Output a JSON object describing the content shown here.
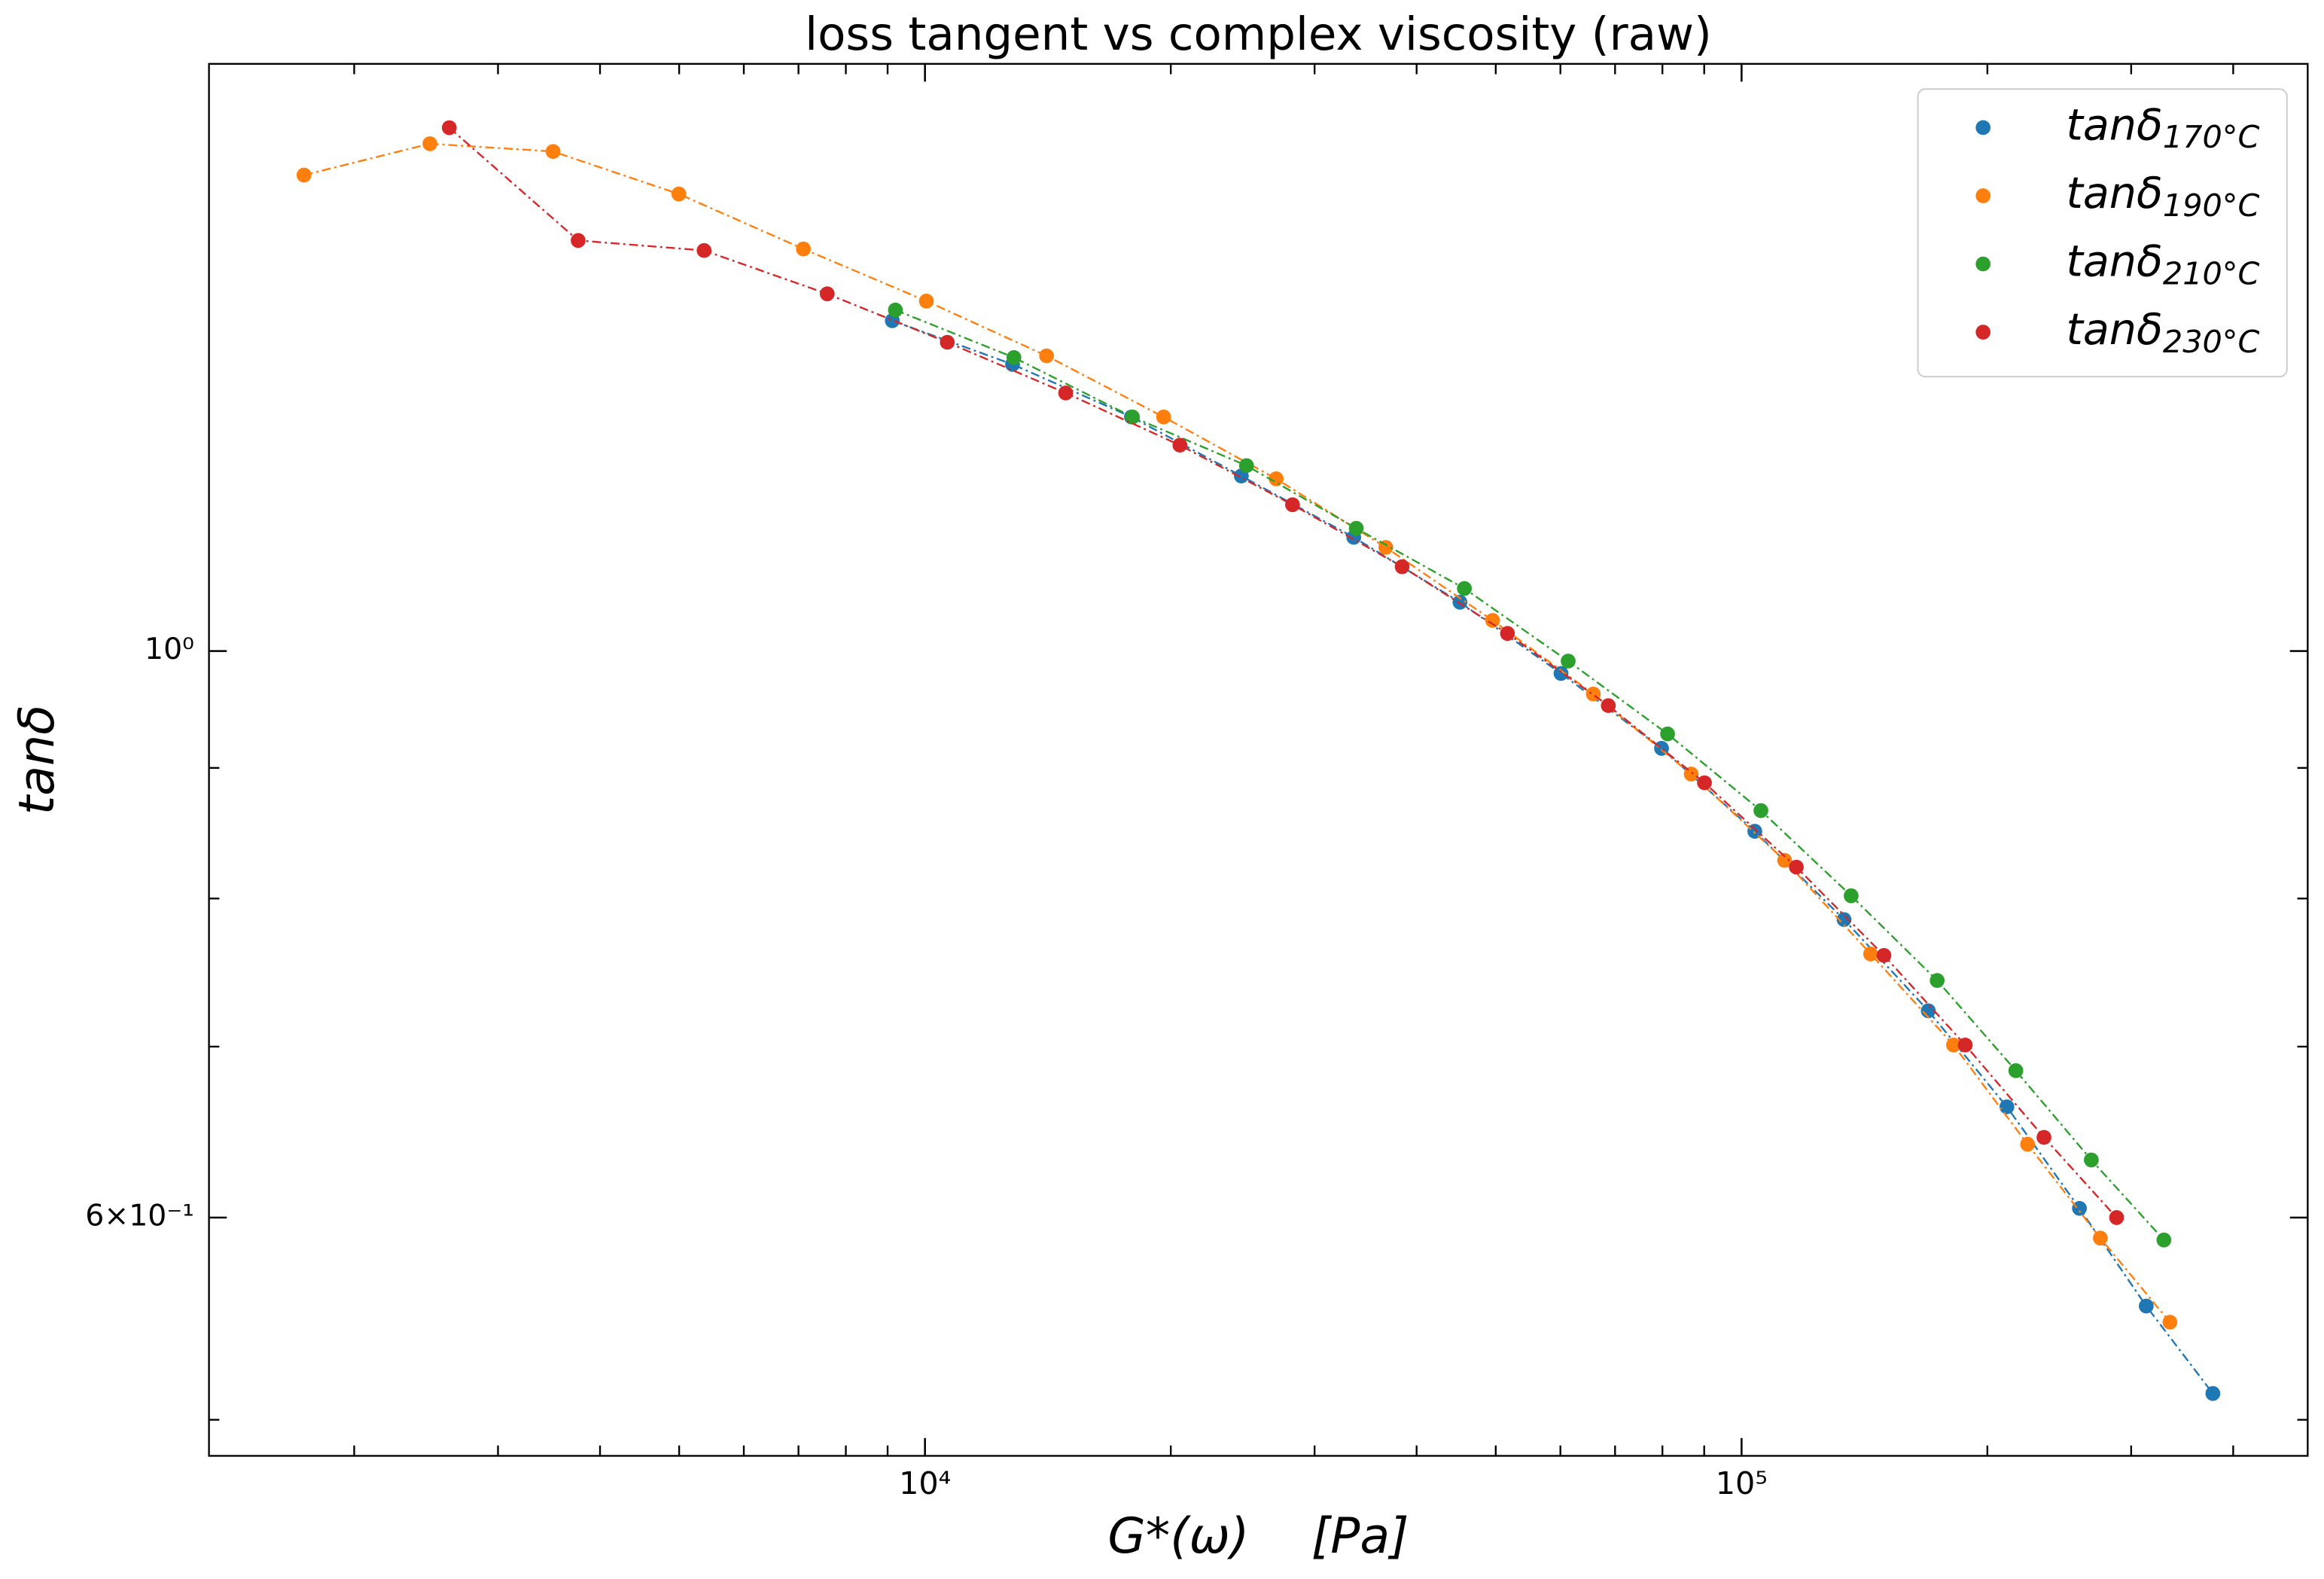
{
  "chart_data": {
    "type": "line",
    "title": "loss tangent vs complex viscosity (raw)",
    "x_label": "G*(ω)    [Pa]",
    "y_label": "tanδ",
    "xscale": "log",
    "yscale": "log",
    "xlim": [
      1328,
      493500
    ],
    "ylim": [
      0.484,
      1.698
    ],
    "xticks": [
      {
        "value": 10000,
        "label": "10⁴"
      },
      {
        "value": 100000,
        "label": "10⁵"
      }
    ],
    "yticks": [
      {
        "value": 0.6,
        "label": "6×10⁻¹"
      },
      {
        "value": 1,
        "label": "10⁰"
      }
    ],
    "legend": "upper right",
    "grid": false,
    "series": [
      {
        "name": "tanδ170°C",
        "color": "#1f77b4",
        "x": [
          9120,
          12800,
          17900,
          24400,
          33500,
          45200,
          60100,
          79800,
          103800,
          133500,
          169300,
          211300,
          259300,
          313000,
          377700
        ],
        "values": [
          1.347,
          1.295,
          1.235,
          1.171,
          1.108,
          1.045,
          0.98,
          0.916,
          0.85,
          0.785,
          0.723,
          0.663,
          0.605,
          0.554,
          0.512
        ]
      },
      {
        "name": "tanδ190°C",
        "color": "#ff7f0e",
        "x": [
          1736,
          2476,
          3504,
          4996,
          7098,
          10040,
          14090,
          19600,
          26920,
          36670,
          49560,
          65830,
          86760,
          112900,
          143900,
          181800,
          224000,
          275000,
          334600
        ],
        "values": [
          1.536,
          1.58,
          1.569,
          1.51,
          1.437,
          1.371,
          1.305,
          1.235,
          1.168,
          1.098,
          1.028,
          0.962,
          0.895,
          0.828,
          0.761,
          0.701,
          0.641,
          0.589,
          0.546
        ]
      },
      {
        "name": "tanδ210°C",
        "color": "#2ca02c",
        "x": [
          9200,
          12850,
          17950,
          24760,
          33740,
          45770,
          61330,
          81170,
          105600,
          136200,
          173600,
          216700,
          268100,
          329000
        ],
        "values": [
          1.36,
          1.303,
          1.235,
          1.182,
          1.117,
          1.058,
          0.991,
          0.928,
          0.866,
          0.802,
          0.743,
          0.685,
          0.632,
          0.588
        ]
      },
      {
        "name": "tanδ230°C",
        "color": "#d62728",
        "x": [
          2615,
          3761,
          5364,
          7591,
          10650,
          14870,
          20520,
          28190,
          38400,
          51680,
          68680,
          90070,
          116700,
          149400,
          187900,
          234600,
          287900
        ],
        "values": [
          1.603,
          1.448,
          1.435,
          1.38,
          1.321,
          1.262,
          1.204,
          1.141,
          1.079,
          1.016,
          0.952,
          0.888,
          0.823,
          0.76,
          0.701,
          0.645,
          0.6
        ]
      }
    ]
  }
}
